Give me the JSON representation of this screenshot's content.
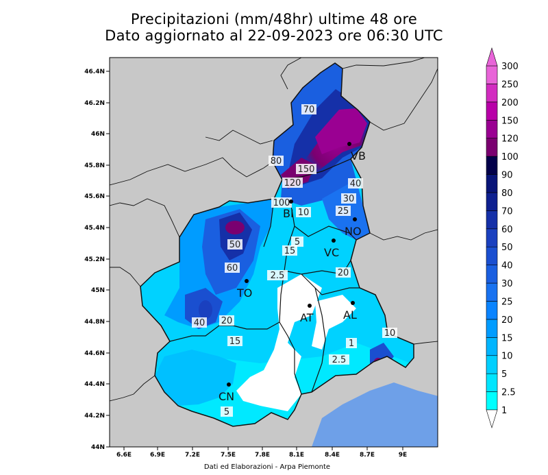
{
  "title_line1": "Precipitazioni (mm/48hr) ultime 48 ore",
  "title_line2": "Dato aggiornato al 22-09-2023 ore 06:30 UTC",
  "footer": "Dati ed Elaborazioni - Arpa Piemonte",
  "lon_ticks": [
    "6.6E",
    "6.9E",
    "7.2E",
    "7.5E",
    "7.8E",
    "8.1E",
    "8.4E",
    "8.7E",
    "9E"
  ],
  "lat_ticks": [
    "46.4N",
    "46.2N",
    "46N",
    "45.8N",
    "45.6N",
    "45.4N",
    "45.2N",
    "45N",
    "44.8N",
    "44.6N",
    "44.4N",
    "44.2N",
    "44N"
  ],
  "colorbar": {
    "levels": [
      "1",
      "2.5",
      "5",
      "10",
      "15",
      "20",
      "25",
      "30",
      "40",
      "50",
      "60",
      "70",
      "80",
      "90",
      "100",
      "120",
      "150",
      "200",
      "250",
      "300"
    ],
    "colors": [
      "#ffffff",
      "#00ffff",
      "#00e5ff",
      "#00cfff",
      "#00b5ff",
      "#009cff",
      "#0a84ff",
      "#1872f0",
      "#1a5fe0",
      "#1a4fd0",
      "#1a40bf",
      "#1530a8",
      "#0e2090",
      "#081478",
      "#02004a",
      "#7a0070",
      "#9a0092",
      "#b800a8",
      "#d22cc0",
      "#e864d8"
    ]
  },
  "cities": [
    {
      "code": "VB"
    },
    {
      "code": "BI"
    },
    {
      "code": "NO"
    },
    {
      "code": "VC"
    },
    {
      "code": "TO"
    },
    {
      "code": "AT"
    },
    {
      "code": "AL"
    },
    {
      "code": "CN"
    }
  ],
  "contour_labels": [
    "70",
    "150",
    "120",
    "100",
    "80",
    "40",
    "30",
    "25",
    "10",
    "5",
    "50",
    "60",
    "15",
    "2.5",
    "20",
    "1",
    "2.5",
    "10",
    "40",
    "20",
    "15",
    "5"
  ]
}
